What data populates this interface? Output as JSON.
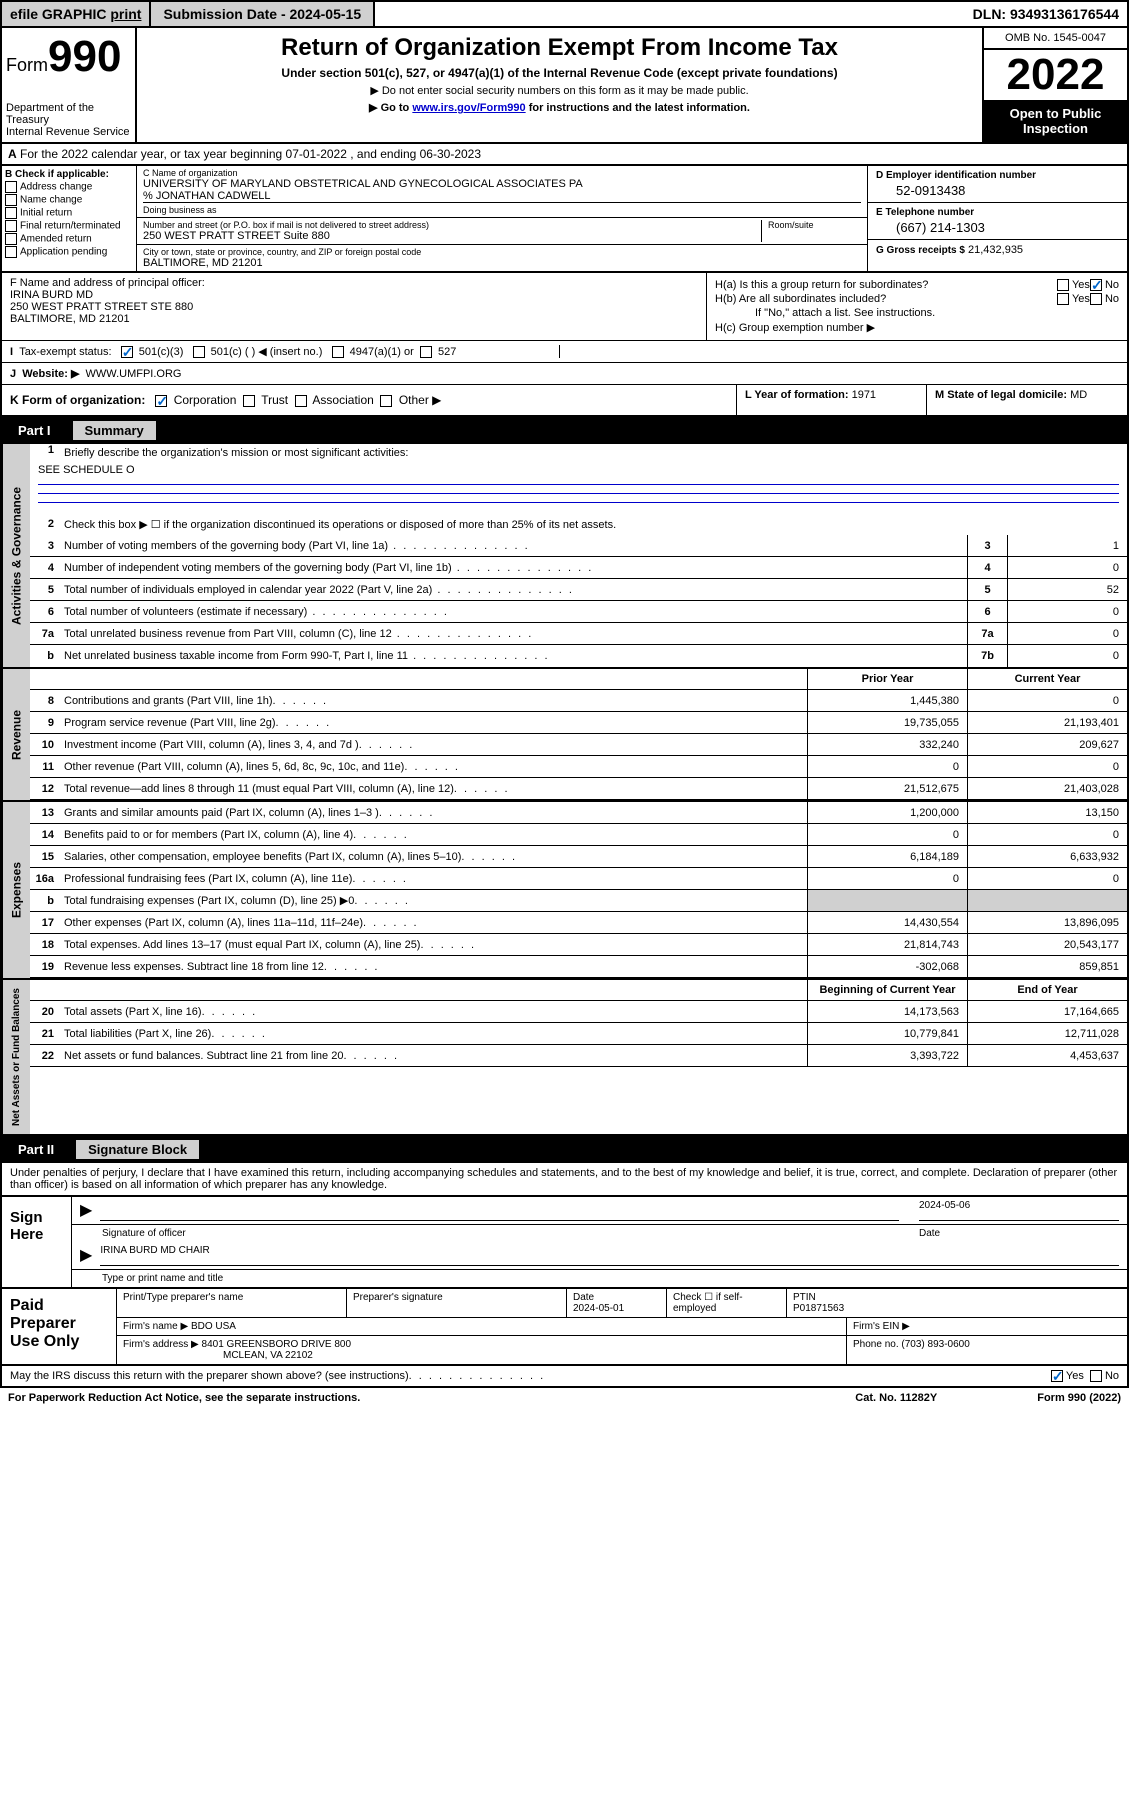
{
  "topbar": {
    "efile": "efile GRAPHIC",
    "print": "print",
    "submission": "Submission Date - 2024-05-15",
    "dln": "DLN: 93493136176544"
  },
  "header": {
    "form_label": "Form",
    "form_num": "990",
    "dept": "Department of the Treasury",
    "irs": "Internal Revenue Service",
    "title": "Return of Organization Exempt From Income Tax",
    "sub": "Under section 501(c), 527, or 4947(a)(1) of the Internal Revenue Code (except private foundations)",
    "note1": "▶ Do not enter social security numbers on this form as it may be made public.",
    "note2_pre": "▶ Go to ",
    "note2_link": "www.irs.gov/Form990",
    "note2_post": " for instructions and the latest information.",
    "omb": "OMB No. 1545-0047",
    "year": "2022",
    "open": "Open to Public Inspection"
  },
  "A": {
    "text": "For the 2022 calendar year, or tax year beginning 07-01-2022    , and ending 06-30-2023"
  },
  "B": {
    "label": "B Check if applicable:",
    "items": [
      "Address change",
      "Name change",
      "Initial return",
      "Final return/terminated",
      "Amended return",
      "Application pending"
    ]
  },
  "C": {
    "name_label": "C Name of organization",
    "name": "UNIVERSITY OF MARYLAND OBSTETRICAL AND GYNECOLOGICAL ASSOCIATES PA",
    "care_of": "% JONATHAN CADWELL",
    "dba_label": "Doing business as",
    "street_label": "Number and street (or P.O. box if mail is not delivered to street address)",
    "suite_label": "Room/suite",
    "street": "250 WEST PRATT STREET Suite 880",
    "city_label": "City or town, state or province, country, and ZIP or foreign postal code",
    "city": "BALTIMORE, MD  21201"
  },
  "D": {
    "label": "D Employer identification number",
    "val": "52-0913438"
  },
  "E": {
    "label": "E Telephone number",
    "val": "(667) 214-1303"
  },
  "G": {
    "label": "G Gross receipts $",
    "val": "21,432,935"
  },
  "F": {
    "label": "F  Name and address of principal officer:",
    "name": "IRINA BURD MD",
    "street": "250 WEST PRATT STREET STE 880",
    "city": "BALTIMORE, MD  21201"
  },
  "H": {
    "a_label": "H(a)  Is this a group return for subordinates?",
    "b_label": "H(b)  Are all subordinates included?",
    "b_note": "If \"No,\" attach a list. See instructions.",
    "c_label": "H(c)  Group exemption number ▶"
  },
  "I": {
    "label": "Tax-exempt status:",
    "opts": [
      "501(c)(3)",
      "501(c) (  ) ◀ (insert no.)",
      "4947(a)(1) or",
      "527"
    ]
  },
  "J": {
    "label": "Website: ▶",
    "val": "WWW.UMFPI.ORG"
  },
  "K": {
    "label": "K Form of organization:",
    "opts": [
      "Corporation",
      "Trust",
      "Association",
      "Other ▶"
    ]
  },
  "L": {
    "label": "L Year of formation:",
    "val": "1971"
  },
  "M": {
    "label": "M State of legal domicile:",
    "val": "MD"
  },
  "partI": {
    "label": "Part I",
    "title": "Summary",
    "q1": "Briefly describe the organization's mission or most significant activities:",
    "q1_val": "SEE SCHEDULE O",
    "q2": "Check this box ▶ ☐  if the organization discontinued its operations or disposed of more than 25% of its net assets.",
    "side1": "Activities & Governance",
    "side2": "Revenue",
    "side3": "Expenses",
    "side4": "Net Assets or Fund Balances",
    "rows_gov": [
      {
        "n": "3",
        "t": "Number of voting members of the governing body (Part VI, line 1a)",
        "box": "3",
        "v": "1"
      },
      {
        "n": "4",
        "t": "Number of independent voting members of the governing body (Part VI, line 1b)",
        "box": "4",
        "v": "0"
      },
      {
        "n": "5",
        "t": "Total number of individuals employed in calendar year 2022 (Part V, line 2a)",
        "box": "5",
        "v": "52"
      },
      {
        "n": "6",
        "t": "Total number of volunteers (estimate if necessary)",
        "box": "6",
        "v": "0"
      },
      {
        "n": "7a",
        "t": "Total unrelated business revenue from Part VIII, column (C), line 12",
        "box": "7a",
        "v": "0"
      },
      {
        "n": "b",
        "t": "Net unrelated business taxable income from Form 990-T, Part I, line 11",
        "box": "7b",
        "v": "0"
      }
    ],
    "hdr_prior": "Prior Year",
    "hdr_current": "Current Year",
    "rows_rev": [
      {
        "n": "8",
        "t": "Contributions and grants (Part VIII, line 1h)",
        "p": "1,445,380",
        "c": "0"
      },
      {
        "n": "9",
        "t": "Program service revenue (Part VIII, line 2g)",
        "p": "19,735,055",
        "c": "21,193,401"
      },
      {
        "n": "10",
        "t": "Investment income (Part VIII, column (A), lines 3, 4, and 7d )",
        "p": "332,240",
        "c": "209,627"
      },
      {
        "n": "11",
        "t": "Other revenue (Part VIII, column (A), lines 5, 6d, 8c, 9c, 10c, and 11e)",
        "p": "0",
        "c": "0"
      },
      {
        "n": "12",
        "t": "Total revenue—add lines 8 through 11 (must equal Part VIII, column (A), line 12)",
        "p": "21,512,675",
        "c": "21,403,028"
      }
    ],
    "rows_exp": [
      {
        "n": "13",
        "t": "Grants and similar amounts paid (Part IX, column (A), lines 1–3 )",
        "p": "1,200,000",
        "c": "13,150"
      },
      {
        "n": "14",
        "t": "Benefits paid to or for members (Part IX, column (A), line 4)",
        "p": "0",
        "c": "0"
      },
      {
        "n": "15",
        "t": "Salaries, other compensation, employee benefits (Part IX, column (A), lines 5–10)",
        "p": "6,184,189",
        "c": "6,633,932"
      },
      {
        "n": "16a",
        "t": "Professional fundraising fees (Part IX, column (A), line 11e)",
        "p": "0",
        "c": "0"
      },
      {
        "n": "b",
        "t": "Total fundraising expenses (Part IX, column (D), line 25) ▶0",
        "p": "",
        "c": "",
        "grey": true
      },
      {
        "n": "17",
        "t": "Other expenses (Part IX, column (A), lines 11a–11d, 11f–24e)",
        "p": "14,430,554",
        "c": "13,896,095"
      },
      {
        "n": "18",
        "t": "Total expenses. Add lines 13–17 (must equal Part IX, column (A), line 25)",
        "p": "21,814,743",
        "c": "20,543,177"
      },
      {
        "n": "19",
        "t": "Revenue less expenses. Subtract line 18 from line 12",
        "p": "-302,068",
        "c": "859,851"
      }
    ],
    "hdr_begin": "Beginning of Current Year",
    "hdr_end": "End of Year",
    "rows_net": [
      {
        "n": "20",
        "t": "Total assets (Part X, line 16)",
        "p": "14,173,563",
        "c": "17,164,665"
      },
      {
        "n": "21",
        "t": "Total liabilities (Part X, line 26)",
        "p": "10,779,841",
        "c": "12,711,028"
      },
      {
        "n": "22",
        "t": "Net assets or fund balances. Subtract line 21 from line 20",
        "p": "3,393,722",
        "c": "4,453,637"
      }
    ]
  },
  "partII": {
    "label": "Part II",
    "title": "Signature Block",
    "declaration": "Under penalties of perjury, I declare that I have examined this return, including accompanying schedules and statements, and to the best of my knowledge and belief, it is true, correct, and complete. Declaration of preparer (other than officer) is based on all information of which preparer has any knowledge."
  },
  "sign": {
    "label": "Sign Here",
    "sig_officer": "Signature of officer",
    "date": "2024-05-06",
    "name_title": "IRINA BURD MD CHAIR",
    "name_label": "Type or print name and title"
  },
  "prep": {
    "label": "Paid Preparer Use Only",
    "col1": "Print/Type preparer's name",
    "col2": "Preparer's signature",
    "col3_label": "Date",
    "col3_val": "2024-05-01",
    "col4": "Check ☐ if self-employed",
    "col5_label": "PTIN",
    "col5_val": "P01871563",
    "firm_label": "Firm's name    ▶",
    "firm_val": "BDO USA",
    "ein_label": "Firm's EIN ▶",
    "addr_label": "Firm's address ▶",
    "addr_val": "8401 GREENSBORO DRIVE 800",
    "addr_city": "MCLEAN, VA  22102",
    "phone_label": "Phone no.",
    "phone_val": "(703) 893-0600"
  },
  "footer": {
    "discuss": "May the IRS discuss this return with the preparer shown above? (see instructions)",
    "paperwork": "For Paperwork Reduction Act Notice, see the separate instructions.",
    "cat": "Cat. No. 11282Y",
    "form": "Form 990 (2022)"
  }
}
